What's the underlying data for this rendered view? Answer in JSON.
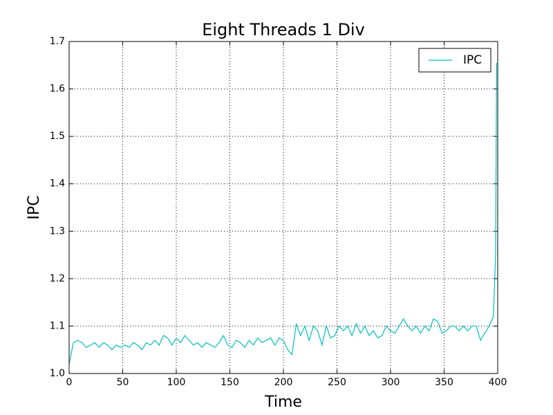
{
  "chart_data": {
    "type": "line",
    "title": "Eight Threads 1 Div",
    "x_label": "Time",
    "y_label": "IPC",
    "x": [
      0,
      4,
      8,
      12,
      16,
      20,
      24,
      28,
      32,
      36,
      40,
      44,
      48,
      52,
      56,
      60,
      64,
      68,
      72,
      76,
      80,
      84,
      88,
      92,
      96,
      100,
      104,
      108,
      112,
      116,
      120,
      124,
      128,
      132,
      136,
      140,
      144,
      148,
      152,
      156,
      160,
      164,
      168,
      172,
      176,
      180,
      184,
      188,
      192,
      196,
      200,
      204,
      208,
      212,
      216,
      220,
      224,
      228,
      232,
      236,
      240,
      244,
      248,
      252,
      256,
      260,
      264,
      268,
      272,
      276,
      280,
      284,
      288,
      292,
      296,
      300,
      304,
      308,
      312,
      316,
      320,
      324,
      328,
      332,
      336,
      340,
      344,
      348,
      352,
      356,
      360,
      364,
      368,
      372,
      376,
      380,
      384,
      388,
      392,
      396,
      398,
      399
    ],
    "series": [
      {
        "name": "IPC",
        "color": "#00bfbf",
        "values": [
          1.02,
          1.065,
          1.07,
          1.065,
          1.055,
          1.06,
          1.065,
          1.055,
          1.065,
          1.06,
          1.05,
          1.06,
          1.055,
          1.06,
          1.055,
          1.065,
          1.06,
          1.05,
          1.065,
          1.06,
          1.07,
          1.06,
          1.08,
          1.075,
          1.06,
          1.075,
          1.065,
          1.08,
          1.07,
          1.06,
          1.065,
          1.055,
          1.065,
          1.06,
          1.055,
          1.065,
          1.08,
          1.06,
          1.055,
          1.07,
          1.065,
          1.055,
          1.07,
          1.06,
          1.075,
          1.065,
          1.07,
          1.075,
          1.06,
          1.075,
          1.07,
          1.05,
          1.04,
          1.105,
          1.08,
          1.1,
          1.07,
          1.1,
          1.09,
          1.06,
          1.1,
          1.075,
          1.08,
          1.1,
          1.09,
          1.1,
          1.08,
          1.105,
          1.085,
          1.1,
          1.08,
          1.09,
          1.075,
          1.08,
          1.1,
          1.09,
          1.085,
          1.1,
          1.115,
          1.1,
          1.09,
          1.1,
          1.085,
          1.1,
          1.09,
          1.115,
          1.11,
          1.085,
          1.09,
          1.1,
          1.1,
          1.09,
          1.1,
          1.09,
          1.1,
          1.1,
          1.07,
          1.085,
          1.1,
          1.12,
          1.25,
          1.655
        ]
      }
    ],
    "xlim": [
      0,
      400
    ],
    "xticks": [
      0,
      50,
      100,
      150,
      200,
      250,
      300,
      350,
      400
    ],
    "ylim": [
      1.0,
      1.7
    ],
    "yticks": [
      {
        "value": 1.0,
        "label": "1.0"
      },
      1.1,
      1.2,
      1.3,
      1.4,
      1.5,
      1.6,
      1.7
    ],
    "grid": true,
    "legend": "upper right"
  }
}
